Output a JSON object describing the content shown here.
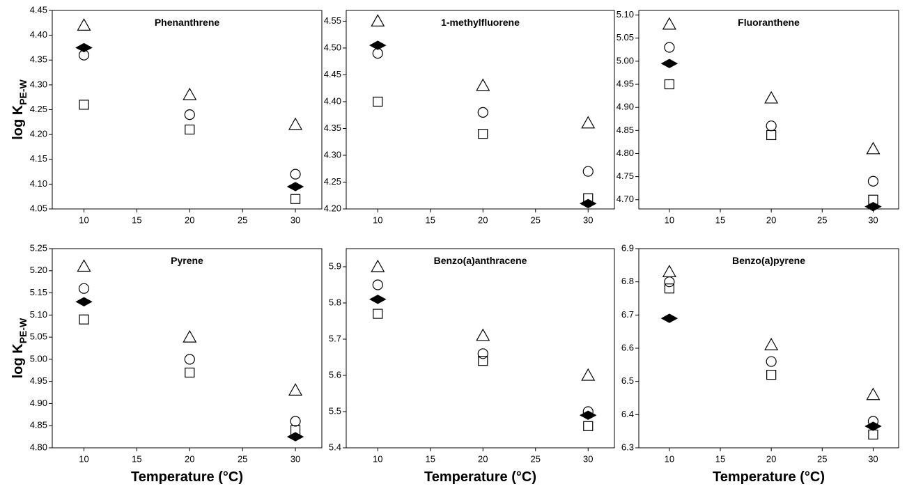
{
  "chart_data": [
    {
      "type": "scatter",
      "title": "Phenanthrene",
      "ylabel": "log K",
      "ylabel_sub": "PE-W",
      "x": [
        10,
        20,
        30
      ],
      "xlim": [
        7,
        32.5
      ],
      "xticks": [
        10,
        15,
        20,
        25,
        30
      ],
      "ylim": [
        4.05,
        4.45
      ],
      "yticks": [
        4.05,
        {
          "value": 4.1,
          "label": "4.10"
        },
        4.15,
        {
          "value": 4.2,
          "label": "4.20"
        },
        4.25,
        {
          "value": 4.3,
          "label": "4.30"
        },
        4.35,
        {
          "value": 4.4,
          "label": "4.40"
        },
        4.45
      ],
      "series": [
        {
          "marker": "triangle",
          "color": "#000000",
          "values": [
            4.42,
            4.28,
            4.22
          ]
        },
        {
          "marker": "circle",
          "color": "#000000",
          "values": [
            4.36,
            4.24,
            4.12
          ]
        },
        {
          "marker": "square",
          "color": "#000000",
          "values": [
            4.26,
            4.21,
            4.07
          ]
        },
        {
          "marker": "diamond",
          "color": "#000000",
          "values": [
            4.375,
            null,
            4.095
          ]
        }
      ]
    },
    {
      "type": "scatter",
      "title": "1-methylfluorene",
      "x": [
        10,
        20,
        30
      ],
      "xlim": [
        7,
        32.5
      ],
      "xticks": [
        10,
        15,
        20,
        25,
        30
      ],
      "ylim": [
        4.2,
        4.57
      ],
      "yticks": [
        {
          "value": 4.2,
          "label": "4.20"
        },
        4.25,
        {
          "value": 4.3,
          "label": "4.30"
        },
        4.35,
        {
          "value": 4.4,
          "label": "4.40"
        },
        4.45,
        {
          "value": 4.5,
          "label": "4.50"
        },
        4.55
      ],
      "series": [
        {
          "marker": "triangle",
          "color": "#000000",
          "values": [
            4.55,
            4.43,
            4.36
          ]
        },
        {
          "marker": "circle",
          "color": "#000000",
          "values": [
            4.49,
            4.38,
            4.27
          ]
        },
        {
          "marker": "square",
          "color": "#000000",
          "values": [
            4.4,
            4.34,
            4.22
          ]
        },
        {
          "marker": "diamond",
          "color": "#000000",
          "values": [
            4.505,
            null,
            4.21
          ]
        }
      ]
    },
    {
      "type": "scatter",
      "title": "Fluoranthene",
      "x": [
        10,
        20,
        30
      ],
      "xlim": [
        7,
        32.5
      ],
      "xticks": [
        10,
        15,
        20,
        25,
        30
      ],
      "ylim": [
        4.68,
        5.11
      ],
      "yticks": [
        {
          "value": 4.7,
          "label": "4.70"
        },
        4.75,
        {
          "value": 4.8,
          "label": "4.80"
        },
        4.85,
        {
          "value": 4.9,
          "label": "4.90"
        },
        4.95,
        {
          "value": 5,
          "label": "5.00"
        },
        5.05,
        {
          "value": 5.1,
          "label": "5.10"
        }
      ],
      "series": [
        {
          "marker": "triangle",
          "color": "#000000",
          "values": [
            5.08,
            4.92,
            4.81
          ]
        },
        {
          "marker": "circle",
          "color": "#000000",
          "values": [
            5.03,
            4.86,
            4.74
          ]
        },
        {
          "marker": "square",
          "color": "#000000",
          "values": [
            4.95,
            4.84,
            4.7
          ]
        },
        {
          "marker": "diamond",
          "color": "#000000",
          "values": [
            4.995,
            null,
            4.685
          ]
        }
      ]
    },
    {
      "type": "scatter",
      "title": "Pyrene",
      "ylabel": "log K",
      "ylabel_sub": "PE-W",
      "xlabel": "Temperature (°C)",
      "x": [
        10,
        20,
        30
      ],
      "xlim": [
        7,
        32.5
      ],
      "xticks": [
        10,
        15,
        20,
        25,
        30
      ],
      "ylim": [
        4.8,
        5.25
      ],
      "yticks": [
        {
          "value": 4.8,
          "label": "4.80"
        },
        4.85,
        {
          "value": 4.9,
          "label": "4.90"
        },
        4.95,
        {
          "value": 5,
          "label": "5.00"
        },
        5.05,
        {
          "value": 5.1,
          "label": "5.10"
        },
        5.15,
        {
          "value": 5.2,
          "label": "5.20"
        },
        5.25
      ],
      "series": [
        {
          "marker": "triangle",
          "color": "#000000",
          "values": [
            5.21,
            5.05,
            4.93
          ]
        },
        {
          "marker": "circle",
          "color": "#000000",
          "values": [
            5.16,
            5.0,
            4.86
          ]
        },
        {
          "marker": "square",
          "color": "#000000",
          "values": [
            5.09,
            4.97,
            4.84
          ]
        },
        {
          "marker": "diamond",
          "color": "#000000",
          "values": [
            5.13,
            null,
            4.825
          ]
        }
      ]
    },
    {
      "type": "scatter",
      "title": "Benzo(a)anthracene",
      "xlabel": "Temperature (°C)",
      "x": [
        10,
        20,
        30
      ],
      "xlim": [
        7,
        32.5
      ],
      "xticks": [
        10,
        15,
        20,
        25,
        30
      ],
      "ylim": [
        5.4,
        5.95
      ],
      "yticks": [
        5.4,
        5.5,
        5.6,
        5.7,
        5.8,
        5.9
      ],
      "series": [
        {
          "marker": "triangle",
          "color": "#000000",
          "values": [
            5.9,
            5.71,
            5.6
          ]
        },
        {
          "marker": "circle",
          "color": "#000000",
          "values": [
            5.85,
            5.66,
            5.5
          ]
        },
        {
          "marker": "square",
          "color": "#000000",
          "values": [
            5.77,
            5.64,
            5.46
          ]
        },
        {
          "marker": "diamond",
          "color": "#000000",
          "values": [
            5.81,
            null,
            5.49
          ]
        }
      ]
    },
    {
      "type": "scatter",
      "title": "Benzo(a)pyrene",
      "xlabel": "Temperature (°C)",
      "x": [
        10,
        20,
        30
      ],
      "xlim": [
        7,
        32.5
      ],
      "xticks": [
        10,
        15,
        20,
        25,
        30
      ],
      "ylim": [
        6.3,
        6.9
      ],
      "yticks": [
        6.3,
        6.4,
        6.5,
        6.6,
        6.7,
        6.8,
        6.9
      ],
      "series": [
        {
          "marker": "triangle",
          "color": "#000000",
          "values": [
            6.83,
            6.61,
            6.46
          ]
        },
        {
          "marker": "circle",
          "color": "#000000",
          "values": [
            6.8,
            6.56,
            6.38
          ]
        },
        {
          "marker": "square",
          "color": "#000000",
          "values": [
            6.78,
            6.52,
            6.34
          ]
        },
        {
          "marker": "diamond",
          "color": "#000000",
          "values": [
            6.69,
            null,
            6.365
          ]
        }
      ]
    }
  ]
}
